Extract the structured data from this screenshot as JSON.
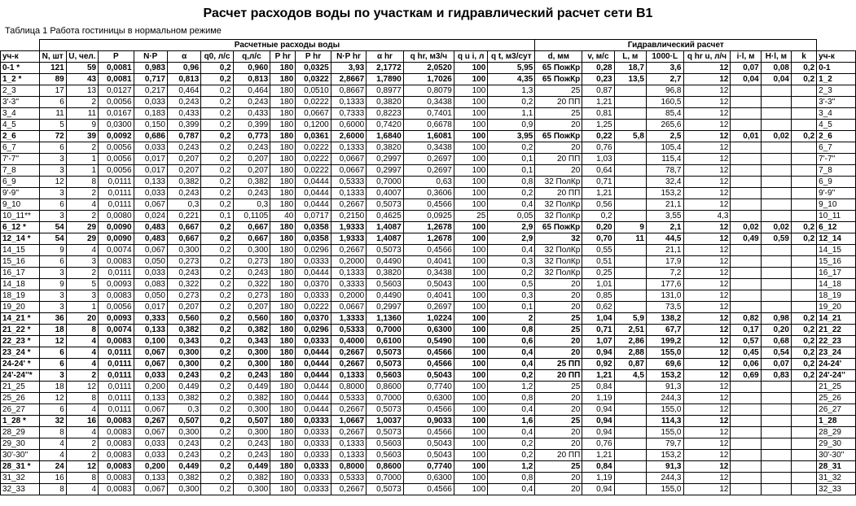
{
  "title": "Расчет расходов воды по участкам и гидравлический расчет сети В1",
  "subtitle": "Таблица 1  Работа гостиницы в нормальном режиме",
  "group1": "Расчетные расходы воды",
  "group2": "Гидравлический расчет",
  "columns": [
    "уч-к",
    "N, шт",
    "U, чел.",
    "P",
    "N·P",
    "α",
    "q0, л/с",
    "q,л/с",
    "P hr",
    "P hr",
    "N·P hr",
    "α hr",
    "q hr, м3/ч",
    "q u i, л",
    "q t, м3/сут",
    "d, мм",
    "v, м/с",
    "L, м",
    "1000·L",
    "q hr u, л/ч",
    "i·l, м",
    "H·l, м",
    "k",
    "уч-к"
  ],
  "rows": [
    {
      "b": 1,
      "c": [
        "0-1 *",
        "121",
        "59",
        "0,0081",
        "0,983",
        "0,96",
        "0,2",
        "0,960",
        "180",
        "0,0325",
        "3,93",
        "2,1772",
        "2,0520",
        "100",
        "5,95",
        "65 ПожКр",
        "0,28",
        "18,7",
        "3,6",
        "12",
        "0,07",
        "0,08",
        "0,2",
        "0-1"
      ]
    },
    {
      "b": 1,
      "c": [
        "1_2 *",
        "89",
        "43",
        "0,0081",
        "0,717",
        "0,813",
        "0,2",
        "0,813",
        "180",
        "0,0322",
        "2,8667",
        "1,7890",
        "1,7026",
        "100",
        "4,35",
        "65 ПожКр",
        "0,23",
        "13,5",
        "2,7",
        "12",
        "0,04",
        "0,04",
        "0,2",
        "1_2"
      ]
    },
    {
      "b": 0,
      "c": [
        "2_3",
        "17",
        "13",
        "0,0127",
        "0,217",
        "0,464",
        "0,2",
        "0,464",
        "180",
        "0,0510",
        "0,8667",
        "0,8977",
        "0,8079",
        "100",
        "1,3",
        "25",
        "0,87",
        "",
        "96,8",
        "12",
        "",
        "",
        "",
        "2_3"
      ]
    },
    {
      "b": 0,
      "c": [
        "3'-3''",
        "6",
        "2",
        "0,0056",
        "0,033",
        "0,243",
        "0,2",
        "0,243",
        "180",
        "0,0222",
        "0,1333",
        "0,3820",
        "0,3438",
        "100",
        "0,2",
        "20 ПП",
        "1,21",
        "",
        "160,5",
        "12",
        "",
        "",
        "",
        "3'-3''"
      ]
    },
    {
      "b": 0,
      "c": [
        "3_4",
        "11",
        "11",
        "0,0167",
        "0,183",
        "0,433",
        "0,2",
        "0,433",
        "180",
        "0,0667",
        "0,7333",
        "0,8223",
        "0,7401",
        "100",
        "1,1",
        "25",
        "0,81",
        "",
        "85,4",
        "12",
        "",
        "",
        "",
        "3_4"
      ]
    },
    {
      "b": 0,
      "c": [
        "4_5",
        "5",
        "9",
        "0,0300",
        "0,150",
        "0,399",
        "0,2",
        "0,399",
        "180",
        "0,1200",
        "0,6000",
        "0,7420",
        "0,6678",
        "100",
        "0,9",
        "20",
        "1,25",
        "",
        "265,6",
        "12",
        "",
        "",
        "",
        "4_5"
      ]
    },
    {
      "b": 1,
      "c": [
        "2_6",
        "72",
        "39",
        "0,0092",
        "0,686",
        "0,787",
        "0,2",
        "0,773",
        "180",
        "0,0361",
        "2,6000",
        "1,6840",
        "1,6081",
        "100",
        "3,95",
        "65 ПожКр",
        "0,22",
        "5,8",
        "2,5",
        "12",
        "0,01",
        "0,02",
        "0,2",
        "2_6"
      ]
    },
    {
      "b": 0,
      "c": [
        "6_7",
        "6",
        "2",
        "0,0056",
        "0,033",
        "0,243",
        "0,2",
        "0,243",
        "180",
        "0,0222",
        "0,1333",
        "0,3820",
        "0,3438",
        "100",
        "0,2",
        "20",
        "0,76",
        "",
        "105,4",
        "12",
        "",
        "",
        "",
        "6_7"
      ]
    },
    {
      "b": 0,
      "c": [
        "7'-7''",
        "3",
        "1",
        "0,0056",
        "0,017",
        "0,207",
        "0,2",
        "0,207",
        "180",
        "0,0222",
        "0,0667",
        "0,2997",
        "0,2697",
        "100",
        "0,1",
        "20 ПП",
        "1,03",
        "",
        "115,4",
        "12",
        "",
        "",
        "",
        "7'-7''"
      ]
    },
    {
      "b": 0,
      "c": [
        "7_8",
        "3",
        "1",
        "0,0056",
        "0,017",
        "0,207",
        "0,2",
        "0,207",
        "180",
        "0,0222",
        "0,0667",
        "0,2997",
        "0,2697",
        "100",
        "0,1",
        "20",
        "0,64",
        "",
        "78,7",
        "12",
        "",
        "",
        "",
        "7_8"
      ]
    },
    {
      "b": 0,
      "c": [
        "6_9",
        "12",
        "8",
        "0,0111",
        "0,133",
        "0,382",
        "0,2",
        "0,382",
        "180",
        "0,0444",
        "0,5333",
        "0,7000",
        "0,63",
        "100",
        "0,8",
        "32 ПолКр",
        "0,71",
        "",
        "32,4",
        "12",
        "",
        "",
        "",
        "6_9"
      ]
    },
    {
      "b": 0,
      "c": [
        "9'-9''",
        "3",
        "2",
        "0,0111",
        "0,033",
        "0,243",
        "0,2",
        "0,243",
        "180",
        "0,0444",
        "0,1333",
        "0,4007",
        "0,3606",
        "100",
        "0,2",
        "20 ПП",
        "1,21",
        "",
        "153,2",
        "12",
        "",
        "",
        "",
        "9'-9''"
      ]
    },
    {
      "b": 0,
      "c": [
        "9_10",
        "6",
        "4",
        "0,0111",
        "0,067",
        "0,3",
        "0,2",
        "0,3",
        "180",
        "0,0444",
        "0,2667",
        "0,5073",
        "0,4566",
        "100",
        "0,4",
        "32 ПолКр",
        "0,56",
        "",
        "21,1",
        "12",
        "",
        "",
        "",
        "9_10"
      ]
    },
    {
      "b": 0,
      "c": [
        "10_11**",
        "3",
        "2",
        "0,0080",
        "0,024",
        "0,221",
        "0,1",
        "0,1105",
        "40",
        "0,0717",
        "0,2150",
        "0,4625",
        "0,0925",
        "25",
        "0,05",
        "32 ПолКр",
        "0,2",
        "",
        "3,55",
        "4,3",
        "",
        "",
        "",
        "10_11"
      ]
    },
    {
      "b": 1,
      "c": [
        "6_12 *",
        "54",
        "29",
        "0,0090",
        "0,483",
        "0,667",
        "0,2",
        "0,667",
        "180",
        "0,0358",
        "1,9333",
        "1,4087",
        "1,2678",
        "100",
        "2,9",
        "65 ПожКр",
        "0,20",
        "9",
        "2,1",
        "12",
        "0,02",
        "0,02",
        "0,2",
        "6_12"
      ]
    },
    {
      "b": 1,
      "c": [
        "12_14 *",
        "54",
        "29",
        "0,0090",
        "0,483",
        "0,667",
        "0,2",
        "0,667",
        "180",
        "0,0358",
        "1,9333",
        "1,4087",
        "1,2678",
        "100",
        "2,9",
        "32",
        "0,70",
        "11",
        "44,5",
        "12",
        "0,49",
        "0,59",
        "0,2",
        "12_14"
      ]
    },
    {
      "b": 0,
      "c": [
        "14_15",
        "9",
        "4",
        "0,0074",
        "0,067",
        "0,300",
        "0,2",
        "0,300",
        "180",
        "0,0296",
        "0,2667",
        "0,5073",
        "0,4566",
        "100",
        "0,4",
        "32 ПолКр",
        "0,55",
        "",
        "21,1",
        "12",
        "",
        "",
        "",
        "14_15"
      ]
    },
    {
      "b": 0,
      "c": [
        "15_16",
        "6",
        "3",
        "0,0083",
        "0,050",
        "0,273",
        "0,2",
        "0,273",
        "180",
        "0,0333",
        "0,2000",
        "0,4490",
        "0,4041",
        "100",
        "0,3",
        "32 ПолКр",
        "0,51",
        "",
        "17,9",
        "12",
        "",
        "",
        "",
        "15_16"
      ]
    },
    {
      "b": 0,
      "c": [
        "16_17",
        "3",
        "2",
        "0,0111",
        "0,033",
        "0,243",
        "0,2",
        "0,243",
        "180",
        "0,0444",
        "0,1333",
        "0,3820",
        "0,3438",
        "100",
        "0,2",
        "32 ПолКр",
        "0,25",
        "",
        "7,2",
        "12",
        "",
        "",
        "",
        "16_17"
      ]
    },
    {
      "b": 0,
      "c": [
        "14_18",
        "9",
        "5",
        "0,0093",
        "0,083",
        "0,322",
        "0,2",
        "0,322",
        "180",
        "0,0370",
        "0,3333",
        "0,5603",
        "0,5043",
        "100",
        "0,5",
        "20",
        "1,01",
        "",
        "177,6",
        "12",
        "",
        "",
        "",
        "14_18"
      ]
    },
    {
      "b": 0,
      "c": [
        "18_19",
        "3",
        "3",
        "0,0083",
        "0,050",
        "0,273",
        "0,2",
        "0,273",
        "180",
        "0,0333",
        "0,2000",
        "0,4490",
        "0,4041",
        "100",
        "0,3",
        "20",
        "0,85",
        "",
        "131,0",
        "12",
        "",
        "",
        "",
        "18_19"
      ]
    },
    {
      "b": 0,
      "c": [
        "19_20",
        "3",
        "1",
        "0,0056",
        "0,017",
        "0,207",
        "0,2",
        "0,207",
        "180",
        "0,0222",
        "0,0667",
        "0,2997",
        "0,2697",
        "100",
        "0,1",
        "20",
        "0,62",
        "",
        "73,5",
        "12",
        "",
        "",
        "",
        "19_20"
      ]
    },
    {
      "b": 1,
      "c": [
        "14_21 *",
        "36",
        "20",
        "0,0093",
        "0,333",
        "0,560",
        "0,2",
        "0,560",
        "180",
        "0,0370",
        "1,3333",
        "1,1360",
        "1,0224",
        "100",
        "2",
        "25",
        "1,04",
        "5,9",
        "138,2",
        "12",
        "0,82",
        "0,98",
        "0,2",
        "14_21"
      ]
    },
    {
      "b": 1,
      "c": [
        "21_22 *",
        "18",
        "8",
        "0,0074",
        "0,133",
        "0,382",
        "0,2",
        "0,382",
        "180",
        "0,0296",
        "0,5333",
        "0,7000",
        "0,6300",
        "100",
        "0,8",
        "25",
        "0,71",
        "2,51",
        "67,7",
        "12",
        "0,17",
        "0,20",
        "0,2",
        "21_22"
      ]
    },
    {
      "b": 1,
      "c": [
        "22_23 *",
        "12",
        "4",
        "0,0083",
        "0,100",
        "0,343",
        "0,2",
        "0,343",
        "180",
        "0,0333",
        "0,4000",
        "0,6100",
        "0,5490",
        "100",
        "0,6",
        "20",
        "1,07",
        "2,86",
        "199,2",
        "12",
        "0,57",
        "0,68",
        "0,2",
        "22_23"
      ]
    },
    {
      "b": 1,
      "c": [
        "23_24 *",
        "6",
        "4",
        "0,0111",
        "0,067",
        "0,300",
        "0,2",
        "0,300",
        "180",
        "0,0444",
        "0,2667",
        "0,5073",
        "0,4566",
        "100",
        "0,4",
        "20",
        "0,94",
        "2,88",
        "155,0",
        "12",
        "0,45",
        "0,54",
        "0,2",
        "23_24"
      ]
    },
    {
      "b": 1,
      "c": [
        "24-24' *",
        "6",
        "4",
        "0,0111",
        "0,067",
        "0,300",
        "0,2",
        "0,300",
        "180",
        "0,0444",
        "0,2667",
        "0,5073",
        "0,4566",
        "100",
        "0,4",
        "25 ПП",
        "0,92",
        "0,87",
        "69,6",
        "12",
        "0,06",
        "0,07",
        "0,2",
        "24-24'"
      ]
    },
    {
      "b": 1,
      "c": [
        "24'-24''*",
        "3",
        "2",
        "0,0111",
        "0,033",
        "0,243",
        "0,2",
        "0,243",
        "180",
        "0,0444",
        "0,1333",
        "0,5603",
        "0,5043",
        "100",
        "0,2",
        "20 ПП",
        "1,21",
        "4,5",
        "153,2",
        "12",
        "0,69",
        "0,83",
        "0,2",
        "24'-24''"
      ]
    },
    {
      "b": 0,
      "c": [
        "21_25",
        "18",
        "12",
        "0,0111",
        "0,200",
        "0,449",
        "0,2",
        "0,449",
        "180",
        "0,0444",
        "0,8000",
        "0,8600",
        "0,7740",
        "100",
        "1,2",
        "25",
        "0,84",
        "",
        "91,3",
        "12",
        "",
        "",
        "",
        "21_25"
      ]
    },
    {
      "b": 0,
      "c": [
        "25_26",
        "12",
        "8",
        "0,0111",
        "0,133",
        "0,382",
        "0,2",
        "0,382",
        "180",
        "0,0444",
        "0,5333",
        "0,7000",
        "0,6300",
        "100",
        "0,8",
        "20",
        "1,19",
        "",
        "244,3",
        "12",
        "",
        "",
        "",
        "25_26"
      ]
    },
    {
      "b": 0,
      "c": [
        "26_27",
        "6",
        "4",
        "0,0111",
        "0,067",
        "0,3",
        "0,2",
        "0,300",
        "180",
        "0,0444",
        "0,2667",
        "0,5073",
        "0,4566",
        "100",
        "0,4",
        "20",
        "0,94",
        "",
        "155,0",
        "12",
        "",
        "",
        "",
        "26_27"
      ]
    },
    {
      "b": 1,
      "c": [
        "1_28 *",
        "32",
        "16",
        "0,0083",
        "0,267",
        "0,507",
        "0,2",
        "0,507",
        "180",
        "0,0333",
        "1,0667",
        "1,0037",
        "0,9033",
        "100",
        "1,6",
        "25",
        "0,94",
        "",
        "114,3",
        "12",
        "",
        "",
        "",
        "1_28"
      ]
    },
    {
      "b": 0,
      "c": [
        "28_29",
        "8",
        "4",
        "0,0083",
        "0,067",
        "0,300",
        "0,2",
        "0,300",
        "180",
        "0,0333",
        "0,2667",
        "0,5073",
        "0,4566",
        "100",
        "0,4",
        "20",
        "0,94",
        "",
        "155,0",
        "12",
        "",
        "",
        "",
        "28_29"
      ]
    },
    {
      "b": 0,
      "c": [
        "29_30",
        "4",
        "2",
        "0,0083",
        "0,033",
        "0,243",
        "0,2",
        "0,243",
        "180",
        "0,0333",
        "0,1333",
        "0,5603",
        "0,5043",
        "100",
        "0,2",
        "20",
        "0,76",
        "",
        "79,7",
        "12",
        "",
        "",
        "",
        "29_30"
      ]
    },
    {
      "b": 0,
      "c": [
        "30'-30''",
        "4",
        "2",
        "0,0083",
        "0,033",
        "0,243",
        "0,2",
        "0,243",
        "180",
        "0,0333",
        "0,1333",
        "0,5603",
        "0,5043",
        "100",
        "0,2",
        "20 ПП",
        "1,21",
        "",
        "153,2",
        "12",
        "",
        "",
        "",
        "30'-30''"
      ]
    },
    {
      "b": 1,
      "c": [
        "28_31 *",
        "24",
        "12",
        "0,0083",
        "0,200",
        "0,449",
        "0,2",
        "0,449",
        "180",
        "0,0333",
        "0,8000",
        "0,8600",
        "0,7740",
        "100",
        "1,2",
        "25",
        "0,84",
        "",
        "91,3",
        "12",
        "",
        "",
        "",
        "28_31"
      ]
    },
    {
      "b": 0,
      "c": [
        "31_32",
        "16",
        "8",
        "0,0083",
        "0,133",
        "0,382",
        "0,2",
        "0,382",
        "180",
        "0,0333",
        "0,5333",
        "0,7000",
        "0,6300",
        "100",
        "0,8",
        "20",
        "1,19",
        "",
        "244,3",
        "12",
        "",
        "",
        "",
        "31_32"
      ]
    },
    {
      "b": 0,
      "c": [
        "32_33",
        "8",
        "4",
        "0,0083",
        "0,067",
        "0,300",
        "0,2",
        "0,300",
        "180",
        "0,0333",
        "0,2667",
        "0,5073",
        "0,4566",
        "100",
        "0,4",
        "20",
        "0,94",
        "",
        "155,0",
        "12",
        "",
        "",
        "",
        "32_33"
      ]
    }
  ]
}
